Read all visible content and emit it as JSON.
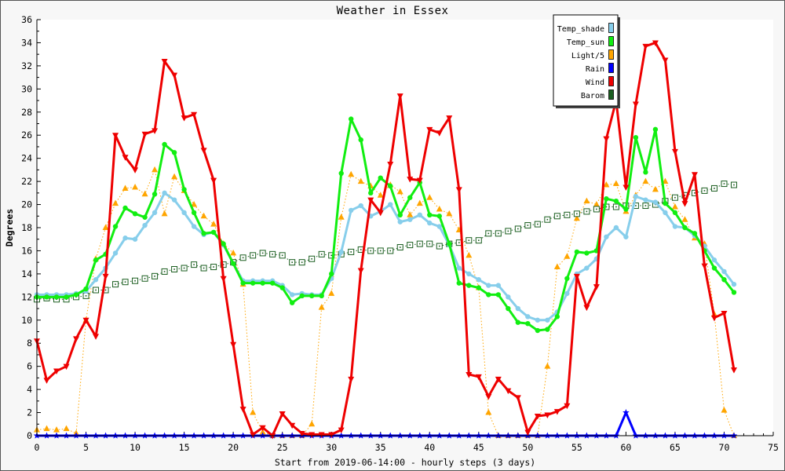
{
  "chart_data": {
    "type": "line",
    "title": "Weather in Essex",
    "xlabel": "Start from 2019-06-14:00 - hourly steps (3 days)",
    "ylabel": "Degrees",
    "xlim": [
      0,
      75
    ],
    "ylim": [
      0,
      36
    ],
    "xticks": [
      0,
      5,
      10,
      15,
      20,
      25,
      30,
      35,
      40,
      45,
      50,
      55,
      60,
      65,
      70,
      75
    ],
    "yticks": [
      0,
      2,
      4,
      6,
      8,
      10,
      12,
      14,
      16,
      18,
      20,
      22,
      24,
      26,
      28,
      30,
      32,
      34,
      36
    ],
    "grid": false,
    "legend": "top-right",
    "x": [
      0,
      1,
      2,
      3,
      4,
      5,
      6,
      7,
      8,
      9,
      10,
      11,
      12,
      13,
      14,
      15,
      16,
      17,
      18,
      19,
      20,
      21,
      22,
      23,
      24,
      25,
      26,
      27,
      28,
      29,
      30,
      31,
      32,
      33,
      34,
      35,
      36,
      37,
      38,
      39,
      40,
      41,
      42,
      43,
      44,
      45,
      46,
      47,
      48,
      49,
      50,
      51,
      52,
      53,
      54,
      55,
      56,
      57,
      58,
      59,
      60,
      61,
      62,
      63,
      64,
      65,
      66,
      67,
      68,
      69,
      70,
      71
    ],
    "series": [
      {
        "name": "Temp_shade",
        "color": "#87ceeb",
        "marker": "circle",
        "values": [
          12.2,
          12.2,
          12.2,
          12.2,
          12.3,
          12.5,
          13.5,
          14.5,
          15.8,
          17.1,
          17.0,
          18.2,
          19.3,
          21.0,
          20.4,
          19.3,
          18.1,
          17.4,
          17.6,
          16.5,
          14.9,
          13.4,
          13.4,
          13.4,
          13.4,
          13.0,
          12.2,
          12.3,
          12.2,
          12.2,
          13.6,
          15.9,
          19.5,
          19.9,
          19.0,
          19.4,
          20.0,
          18.5,
          18.7,
          19.1,
          18.4,
          18.1,
          16.5,
          14.5,
          14.0,
          13.5,
          13.0,
          13.0,
          12.0,
          11.0,
          10.3,
          10.0,
          10.0,
          10.7,
          12.3,
          14.0,
          14.5,
          15.3,
          17.2,
          18.0,
          17.2,
          20.7,
          20.4,
          20.2,
          19.3,
          18.1,
          18.0,
          17.3,
          16.4,
          15.2,
          14.2,
          13.1
        ]
      },
      {
        "name": "Temp_sun",
        "color": "#11ee11",
        "marker": "circle",
        "values": [
          12.0,
          12.0,
          12.0,
          12.0,
          12.2,
          12.7,
          15.2,
          15.7,
          18.1,
          19.7,
          19.2,
          18.9,
          20.9,
          25.2,
          24.5,
          21.3,
          19.3,
          17.5,
          17.6,
          16.6,
          14.9,
          13.2,
          13.2,
          13.2,
          13.2,
          12.8,
          11.5,
          12.1,
          12.1,
          12.1,
          14.0,
          22.7,
          27.4,
          25.6,
          21.0,
          22.3,
          21.6,
          19.1,
          20.6,
          21.9,
          19.1,
          19.0,
          16.6,
          13.2,
          13.0,
          12.8,
          12.2,
          12.2,
          11.0,
          9.8,
          9.7,
          9.1,
          9.2,
          10.3,
          13.6,
          15.9,
          15.8,
          16.0,
          20.5,
          20.3,
          19.6,
          25.8,
          22.8,
          26.5,
          20.1,
          19.3,
          18.0,
          17.5,
          16.0,
          14.5,
          13.5,
          12.4
        ]
      },
      {
        "name": "Light/5",
        "color": "#ffa500",
        "marker": "triangle-up",
        "values": [
          0.5,
          0.6,
          0.5,
          0.6,
          0.2,
          10.0,
          15.3,
          18.0,
          20.1,
          21.4,
          21.5,
          20.9,
          23.0,
          19.2,
          22.4,
          21.2,
          20.0,
          19.0,
          18.3,
          16.6,
          15.8,
          13.1,
          2.0,
          0.3,
          0.0,
          0.0,
          0.0,
          0.0,
          1.0,
          11.1,
          12.3,
          18.9,
          22.6,
          22.0,
          21.6,
          20.8,
          21.7,
          21.1,
          19.1,
          20.1,
          20.6,
          19.6,
          19.2,
          17.8,
          15.6,
          12.8,
          2.0,
          0.0,
          0.0,
          0.0,
          0.0,
          0.0,
          6.0,
          14.6,
          15.5,
          18.8,
          20.3,
          20.0,
          21.7,
          21.8,
          19.4,
          20.8,
          22.0,
          21.3,
          22.0,
          19.8,
          18.7,
          17.1,
          16.6,
          10.5,
          2.2,
          0.0
        ]
      },
      {
        "name": "Rain",
        "color": "#0000ff",
        "marker": "star",
        "values": [
          0,
          0,
          0,
          0,
          0,
          0,
          0,
          0,
          0,
          0,
          0,
          0,
          0,
          0,
          0,
          0,
          0,
          0,
          0,
          0,
          0,
          0,
          0,
          0,
          0,
          0,
          0,
          0,
          0,
          0,
          0,
          0,
          0,
          0,
          0,
          0,
          0,
          0,
          0,
          0,
          0,
          0,
          0,
          0,
          0,
          0,
          0,
          0,
          0,
          0,
          0,
          0,
          0,
          0,
          0,
          0,
          0,
          0,
          0,
          0,
          2.0,
          0,
          0,
          0,
          0,
          0,
          0,
          0,
          0,
          0,
          0,
          0
        ]
      },
      {
        "name": "Wind",
        "color": "#ee0000",
        "marker": "triangle-down",
        "values": [
          8.2,
          4.8,
          5.6,
          6.0,
          8.4,
          10.0,
          8.6,
          13.8,
          26.0,
          24.1,
          23.0,
          26.1,
          26.4,
          32.4,
          31.2,
          27.5,
          27.8,
          24.7,
          22.1,
          13.6,
          7.9,
          2.3,
          0.1,
          0.7,
          0.0,
          1.9,
          0.9,
          0.2,
          0.1,
          0.1,
          0.1,
          0.5,
          4.9,
          14.3,
          20.4,
          19.3,
          23.5,
          29.4,
          22.2,
          22.1,
          26.5,
          26.2,
          27.5,
          21.3,
          5.3,
          5.1,
          3.4,
          4.9,
          3.9,
          3.3,
          0.3,
          1.7,
          1.8,
          2.1,
          2.6,
          13.8,
          11.1,
          12.9,
          25.7,
          29.0,
          21.5,
          28.7,
          33.7,
          34.0,
          32.5,
          24.6,
          20.1,
          22.6,
          14.7,
          10.2,
          10.6,
          5.7
        ]
      },
      {
        "name": "Barom",
        "color": "#1b5e20",
        "marker": "square",
        "values": [
          11.8,
          11.9,
          11.8,
          11.8,
          12.0,
          12.1,
          12.6,
          12.6,
          13.1,
          13.3,
          13.4,
          13.6,
          13.8,
          14.2,
          14.4,
          14.5,
          14.8,
          14.5,
          14.6,
          14.8,
          15.0,
          15.4,
          15.6,
          15.8,
          15.7,
          15.6,
          15.0,
          15.0,
          15.3,
          15.7,
          15.6,
          15.7,
          15.9,
          16.1,
          16.0,
          16.0,
          16.0,
          16.3,
          16.5,
          16.6,
          16.6,
          16.4,
          16.6,
          16.7,
          16.9,
          16.9,
          17.5,
          17.5,
          17.7,
          17.9,
          18.2,
          18.3,
          18.7,
          19.0,
          19.1,
          19.2,
          19.4,
          19.6,
          19.8,
          19.8,
          19.9,
          19.9,
          19.9,
          20.0,
          20.3,
          20.6,
          20.8,
          21.0,
          21.2,
          21.4,
          21.8,
          21.7
        ]
      }
    ]
  }
}
